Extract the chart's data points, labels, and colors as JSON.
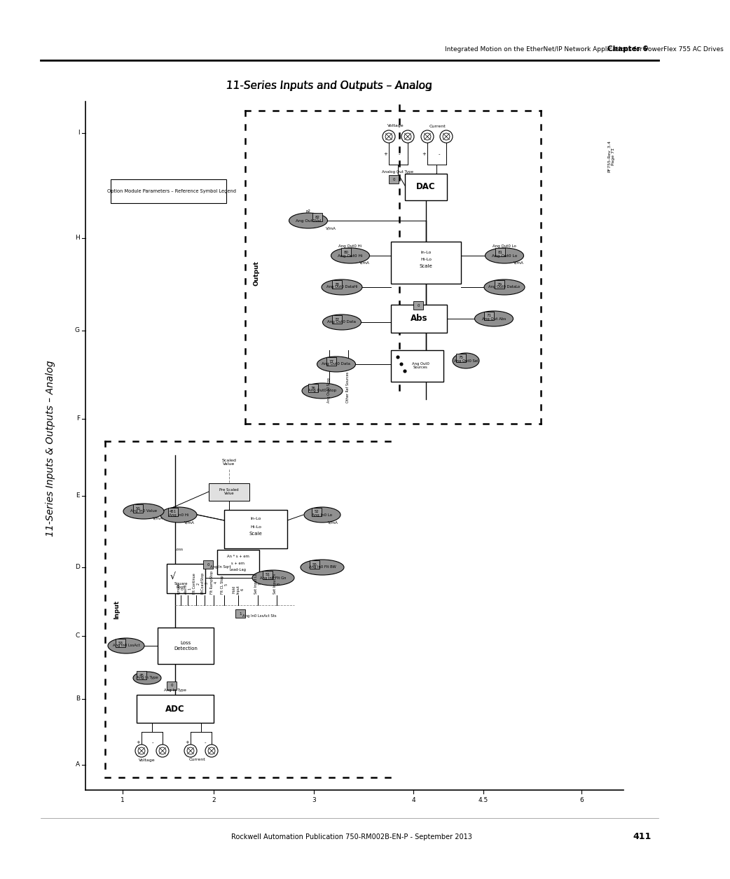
{
  "page_title": "11-Series Inputs and Outputs – Analog",
  "header_text": "Integrated Motion on the EtherNet/IP Network Applications for PowerFlex 755 AC Drives",
  "header_chapter": "Chapter 6",
  "footer_text": "Rockwell Automation Publication 750-RM002B-EN-P - September 2013",
  "footer_page": "411",
  "sidebar_title": "11-Series Inputs & Outputs – Analog",
  "bg_color": "#ffffff",
  "ref_text": "PF755-Rev_3.4\nPage 71",
  "legend_label": "Option Module Parameters – Reference Symbol Legend",
  "input_label": "Input",
  "output_label": "Output",
  "y_labels": [
    "A",
    "B",
    "C",
    "D",
    "E",
    "F",
    "G",
    "H",
    "I"
  ],
  "x_labels": [
    "1",
    "2",
    "3",
    "4",
    "4.5",
    "6"
  ],
  "ellipse_color": "#808080",
  "ellipse_fc": "#909090",
  "block_fc": "#ffffff",
  "param_box_fc": "#a0a0a0"
}
